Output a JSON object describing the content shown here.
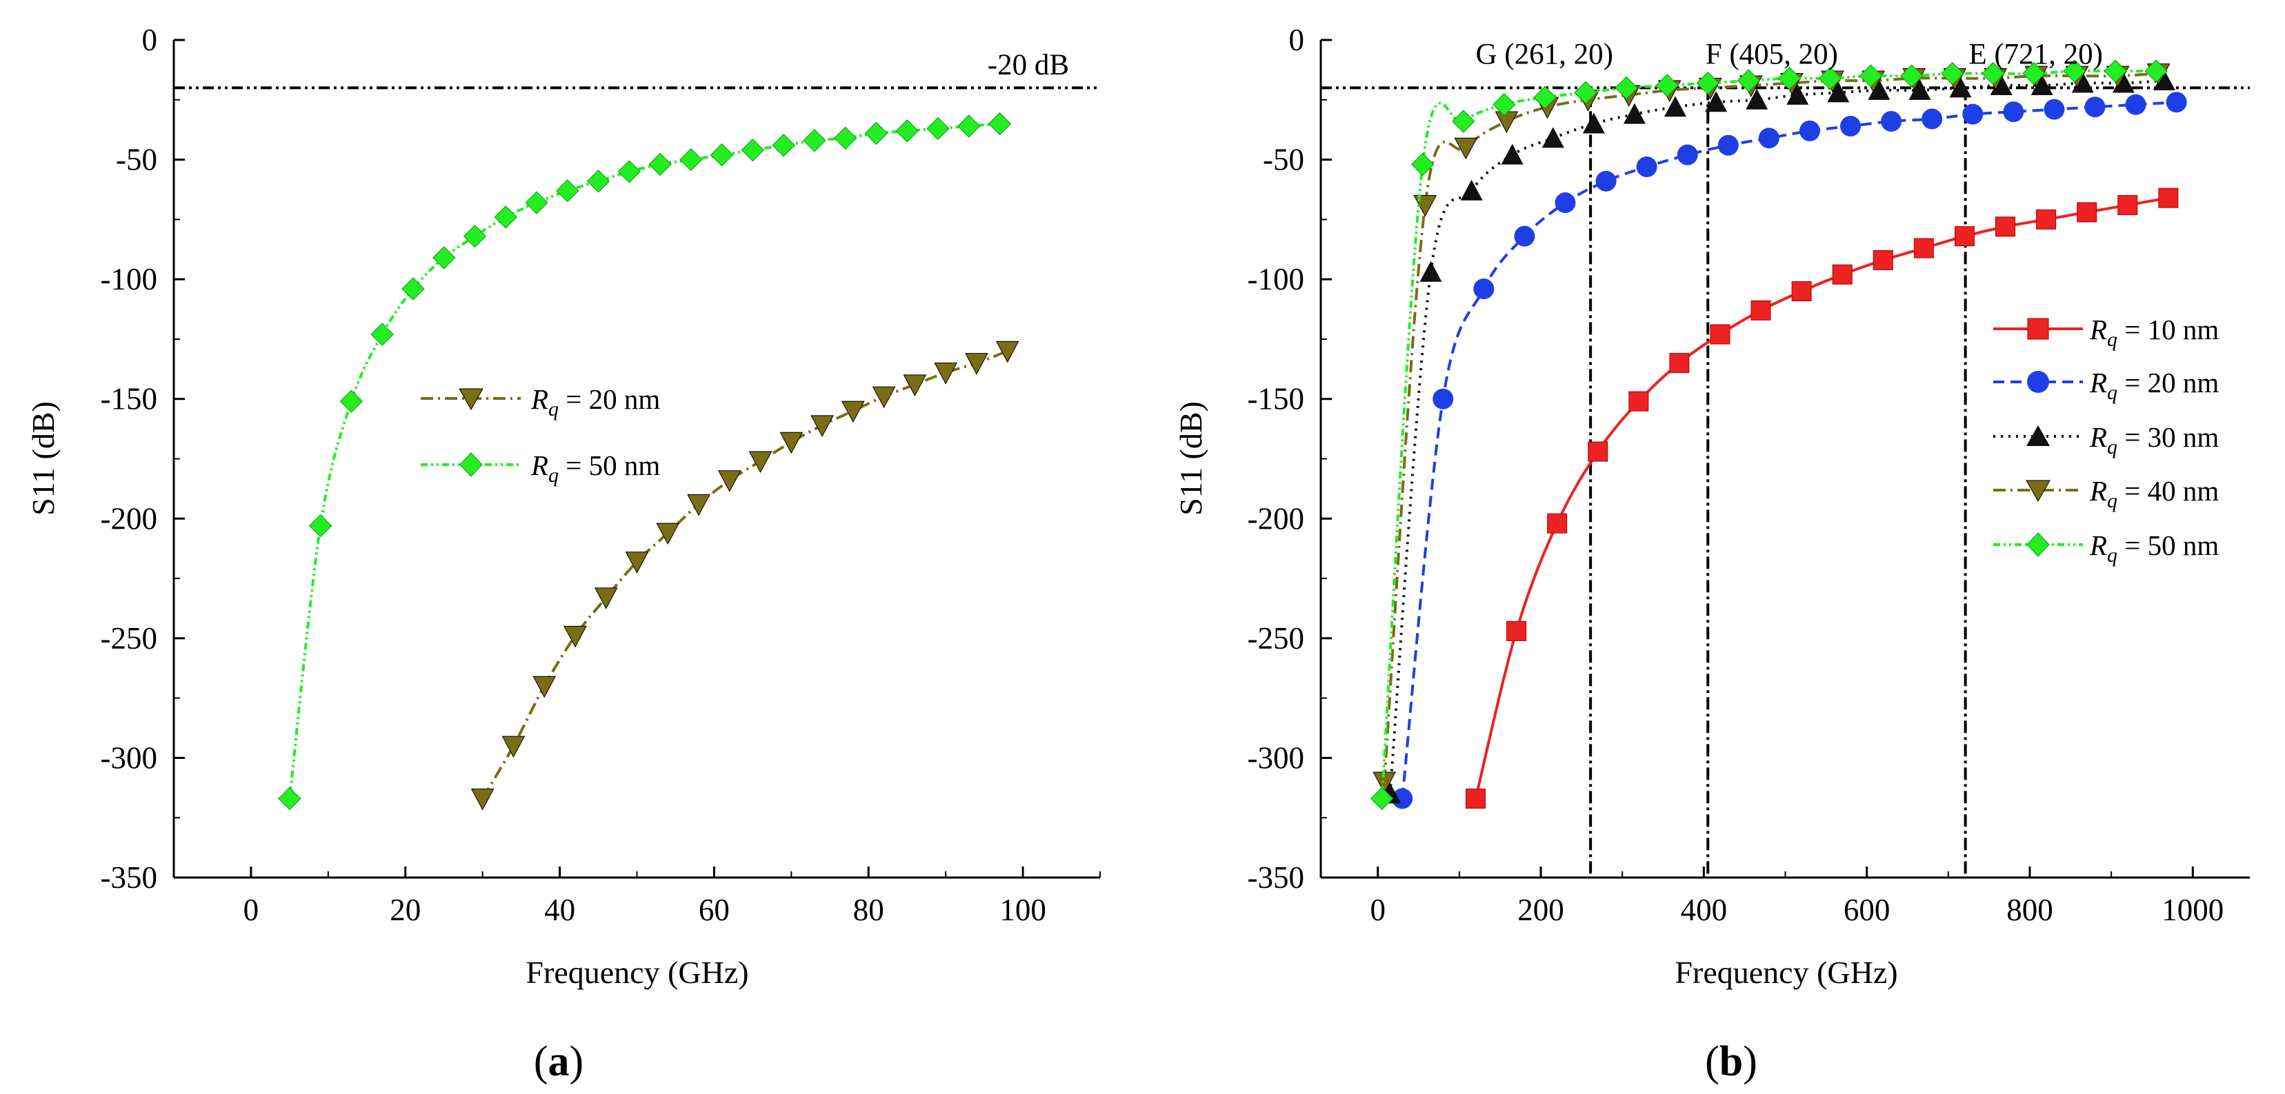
{
  "chart_data": [
    {
      "panel": "a",
      "panel_label": {
        "open": "(",
        "letter": "a",
        "close": ")"
      },
      "type": "line",
      "xlabel": "Frequency (GHz)",
      "ylabel": "S11 (dB)",
      "xlim": [
        -10,
        110
      ],
      "ylim": [
        -350,
        0
      ],
      "xticks": [
        0,
        20,
        40,
        60,
        80,
        100
      ],
      "yticks": [
        -350,
        -300,
        -250,
        -200,
        -150,
        -100,
        -50,
        0
      ],
      "reference_line": {
        "y": -20,
        "label": "-20 dB"
      },
      "vlines": [],
      "annotations": [],
      "legend_position": "center",
      "series": [
        {
          "legend_prefix": "R",
          "legend_sub": "q",
          "legend_suffix": " = 20 nm",
          "color": "#7a6d14",
          "marker": "triangle-down",
          "dash": "18,7,3,7",
          "x": [
            30,
            34,
            38,
            42,
            46,
            50,
            54,
            58,
            62,
            66,
            70,
            74,
            78,
            82,
            86,
            90,
            94,
            98
          ],
          "y": [
            -317,
            -295,
            -270,
            -249,
            -233,
            -218,
            -206,
            -194,
            -184,
            -176,
            -168,
            -161,
            -155,
            -149,
            -144,
            -139,
            -135,
            -130
          ]
        },
        {
          "legend_prefix": "R",
          "legend_sub": "q",
          "legend_suffix": " = 50 nm",
          "color": "#22ee22",
          "marker": "diamond",
          "dash": "10,5,3,5,3,5",
          "x": [
            5,
            9,
            13,
            17,
            21,
            25,
            29,
            33,
            37,
            41,
            45,
            49,
            53,
            57,
            61,
            65,
            69,
            73,
            77,
            81,
            85,
            89,
            93,
            97
          ],
          "y": [
            -317,
            -203,
            -151,
            -123,
            -104,
            -91,
            -82,
            -74,
            -68,
            -63,
            -59,
            -55,
            -52,
            -50,
            -48,
            -46,
            -44,
            -42,
            -41,
            -39,
            -38,
            -37,
            -36,
            -35
          ]
        }
      ]
    },
    {
      "panel": "b",
      "panel_label": {
        "open": "(",
        "letter": "b",
        "close": ")"
      },
      "type": "line",
      "xlabel": "Frequency (GHz)",
      "ylabel": "S11 (dB)",
      "xlim": [
        -70,
        1070
      ],
      "ylim": [
        -350,
        0
      ],
      "xticks": [
        0,
        200,
        400,
        600,
        800,
        1000
      ],
      "yticks": [
        -350,
        -300,
        -250,
        -200,
        -150,
        -100,
        -50,
        0
      ],
      "reference_line": {
        "y": -20,
        "label": ""
      },
      "vlines": [
        261,
        405,
        721
      ],
      "annotations": [
        {
          "text": "G (261, 20)",
          "x": 120,
          "y": -10
        },
        {
          "text": "F (405, 20)",
          "x": 402,
          "y": -10
        },
        {
          "text": "E (721, 20)",
          "x": 725,
          "y": -10
        }
      ],
      "legend_position": "right",
      "series": [
        {
          "legend_prefix": "R",
          "legend_sub": "q",
          "legend_suffix": " = 10 nm",
          "color": "#ee2222",
          "marker": "square",
          "dash": "",
          "x": [
            120,
            170,
            220,
            270,
            320,
            370,
            420,
            470,
            520,
            570,
            620,
            670,
            720,
            770,
            820,
            870,
            920,
            970
          ],
          "y": [
            -317,
            -247,
            -202,
            -172,
            -151,
            -135,
            -123,
            -113,
            -105,
            -98,
            -92,
            -87,
            -82,
            -78,
            -75,
            -72,
            -69,
            -66
          ]
        },
        {
          "legend_prefix": "R",
          "legend_sub": "q",
          "legend_suffix": " = 20 nm",
          "color": "#1f3fe6",
          "marker": "circle",
          "dash": "16,9",
          "x": [
            30,
            80,
            130,
            180,
            230,
            280,
            330,
            380,
            430,
            480,
            530,
            580,
            630,
            680,
            730,
            780,
            830,
            880,
            930,
            980
          ],
          "y": [
            -317,
            -150,
            -104,
            -82,
            -68,
            -59,
            -53,
            -48,
            -44,
            -41,
            -38,
            -36,
            -34,
            -33,
            -31,
            -30,
            -29,
            -28,
            -27,
            -26
          ]
        },
        {
          "legend_prefix": "R",
          "legend_sub": "q",
          "legend_suffix": " = 30 nm",
          "color": "#111111",
          "marker": "triangle-up",
          "dash": "3,8",
          "x": [
            15,
            65,
            115,
            165,
            215,
            265,
            315,
            365,
            415,
            465,
            515,
            565,
            615,
            665,
            715,
            765,
            815,
            865,
            915,
            965
          ],
          "y": [
            -315,
            -97,
            -63,
            -48,
            -41,
            -35,
            -31,
            -28,
            -26,
            -25,
            -23,
            -22,
            -21,
            -21,
            -20,
            -19,
            -19,
            -18,
            -18,
            -17
          ]
        },
        {
          "legend_prefix": "R",
          "legend_sub": "q",
          "legend_suffix": " = 40 nm",
          "color": "#7a6d14",
          "marker": "triangle-down",
          "dash": "18,7,3,7",
          "x": [
            8,
            58,
            108,
            158,
            208,
            258,
            308,
            358,
            408,
            458,
            508,
            558,
            608,
            658,
            708,
            758,
            808,
            858,
            908,
            958
          ],
          "y": [
            -310,
            -69,
            -45,
            -34,
            -28,
            -25,
            -23,
            -21,
            -20,
            -19,
            -18,
            -17,
            -17,
            -16,
            -16,
            -16,
            -15,
            -15,
            -15,
            -14
          ]
        },
        {
          "legend_prefix": "R",
          "legend_sub": "q",
          "legend_suffix": " = 50 nm",
          "color": "#22ee22",
          "marker": "diamond",
          "dash": "10,5,3,5,3,5",
          "x": [
            5,
            55,
            105,
            155,
            205,
            255,
            305,
            355,
            405,
            455,
            505,
            555,
            605,
            655,
            705,
            755,
            805,
            855,
            905,
            955
          ],
          "y": [
            -317,
            -52,
            -34,
            -27,
            -24,
            -22,
            -20,
            -19,
            -18,
            -17,
            -16,
            -16,
            -15,
            -15,
            -14,
            -14,
            -14,
            -13,
            -13,
            -13
          ]
        }
      ]
    }
  ]
}
